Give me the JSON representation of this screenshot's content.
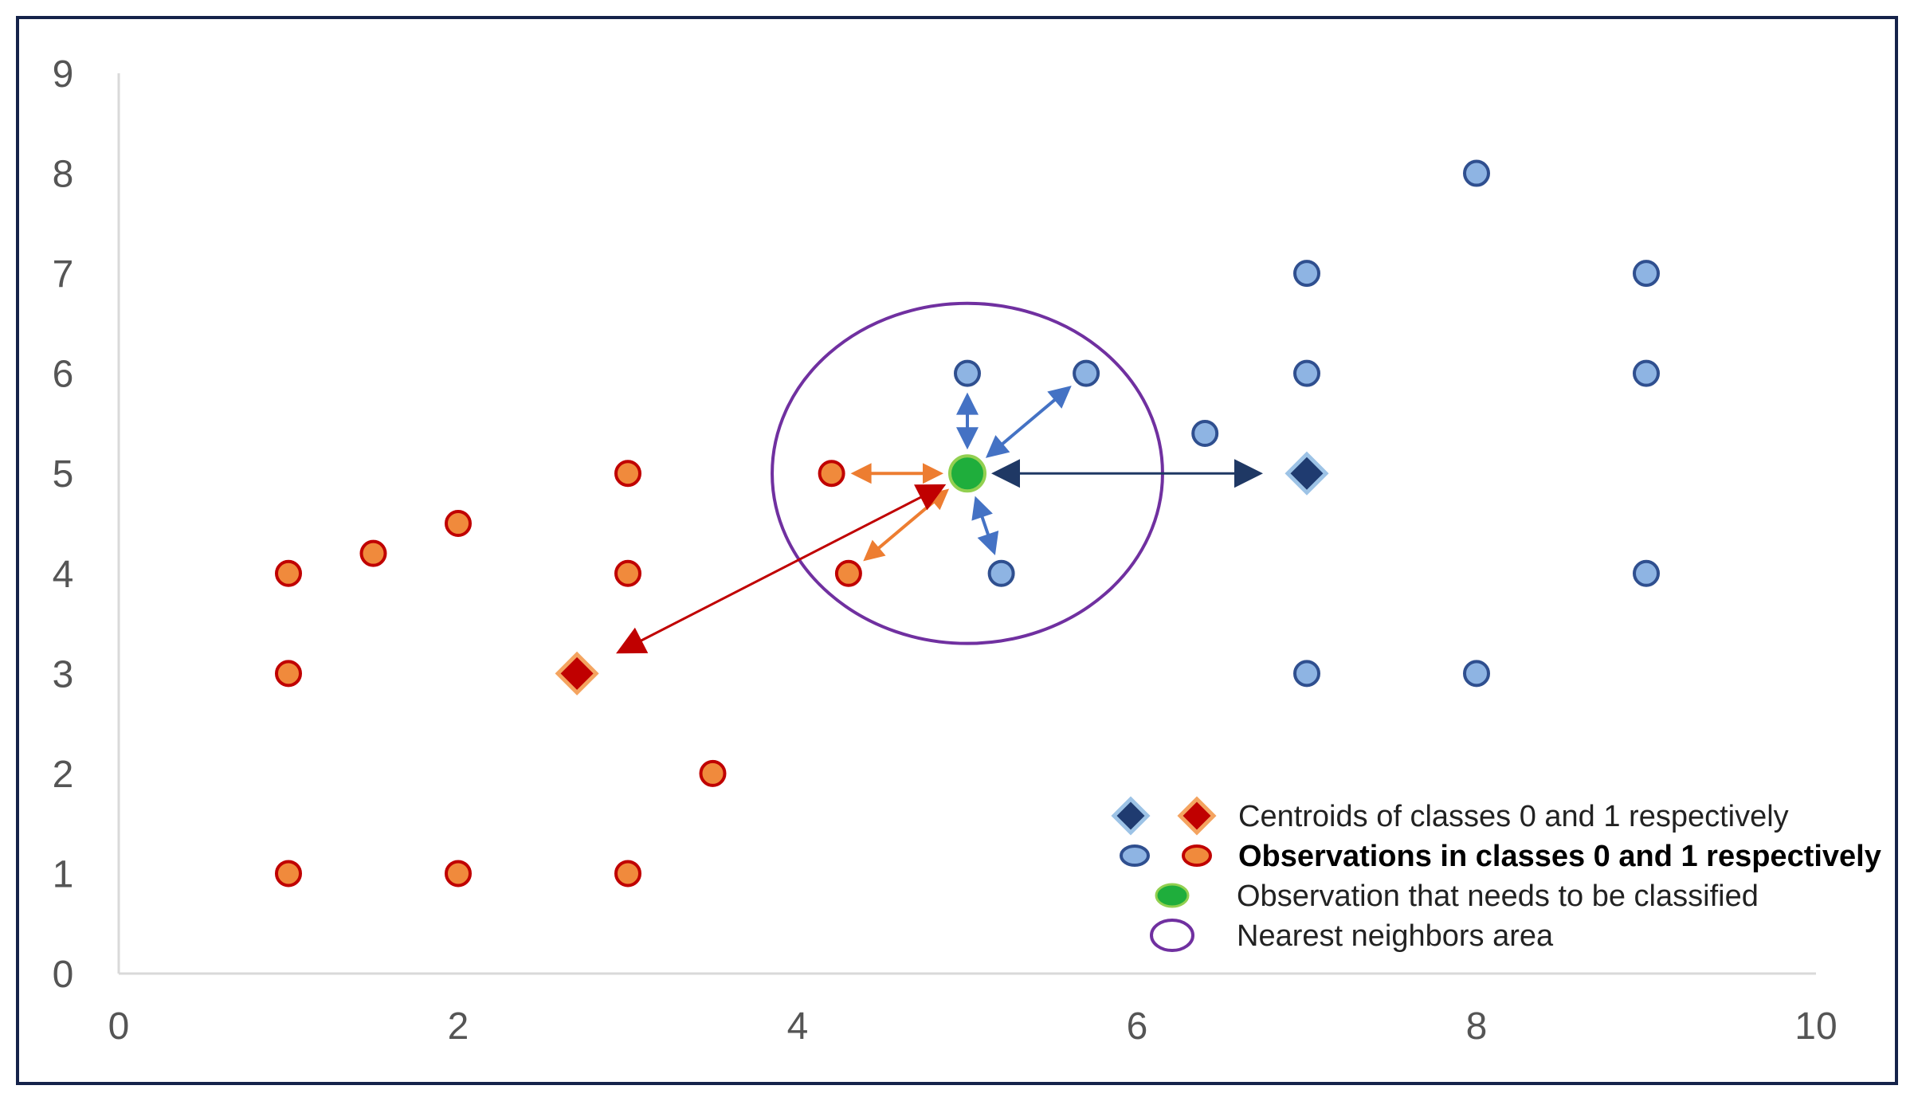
{
  "chart_data": {
    "type": "scatter",
    "title": "",
    "xlabel": "",
    "ylabel": "",
    "xlim": [
      0,
      10
    ],
    "ylim": [
      0,
      9
    ],
    "x_ticks": [
      0,
      2,
      4,
      6,
      8,
      10
    ],
    "y_ticks": [
      0,
      1,
      2,
      3,
      4,
      5,
      6,
      7,
      8,
      9
    ],
    "grid": false,
    "legend_position": "bottom-right",
    "series": [
      {
        "id": "class0",
        "points": [
          [
            5,
            6
          ],
          [
            5.7,
            6
          ],
          [
            6.4,
            5.4
          ],
          [
            5.2,
            4
          ],
          [
            7,
            7
          ],
          [
            7,
            6
          ],
          [
            7,
            3
          ],
          [
            8,
            8
          ],
          [
            8,
            3
          ],
          [
            9,
            7
          ],
          [
            9,
            6
          ],
          [
            9,
            4
          ]
        ]
      },
      {
        "id": "class1",
        "points": [
          [
            1,
            4
          ],
          [
            1,
            3
          ],
          [
            1,
            1
          ],
          [
            1.5,
            4.2
          ],
          [
            2,
            4.5
          ],
          [
            2,
            1
          ],
          [
            3,
            5
          ],
          [
            3,
            4
          ],
          [
            3,
            1
          ],
          [
            3.5,
            2
          ],
          [
            4.2,
            5
          ],
          [
            4.3,
            4
          ]
        ]
      }
    ],
    "centroids": [
      {
        "class": "0",
        "x": 7,
        "y": 5
      },
      {
        "class": "1",
        "x": 2.7,
        "y": 3
      }
    ],
    "query_point": {
      "x": 5,
      "y": 5
    },
    "neighbors_area": {
      "center_x": 5,
      "center_y": 5,
      "radius_x": 1.15,
      "radius_y": 1.7
    },
    "arrows": [
      {
        "type": "neighbor-class0",
        "from": [
          5,
          5
        ],
        "to": [
          5,
          6
        ]
      },
      {
        "type": "neighbor-class0",
        "from": [
          5,
          5
        ],
        "to": [
          5.7,
          6
        ]
      },
      {
        "type": "neighbor-class0",
        "from": [
          5,
          5
        ],
        "to": [
          5.2,
          4
        ]
      },
      {
        "type": "neighbor-class1",
        "from": [
          5,
          5
        ],
        "to": [
          4.2,
          5
        ]
      },
      {
        "type": "neighbor-class1",
        "from": [
          5,
          5
        ],
        "to": [
          4.3,
          4
        ]
      },
      {
        "type": "centroid-class0",
        "from": [
          5,
          5
        ],
        "to": [
          7,
          5
        ]
      },
      {
        "type": "centroid-class1",
        "from": [
          5,
          5
        ],
        "to": [
          2.7,
          3
        ]
      }
    ],
    "legend": [
      {
        "key": "centroids",
        "label": "Centroids of classes 0 and 1 respectively",
        "bold": false
      },
      {
        "key": "observations",
        "label": "Observations in classes 0 and 1 respectively",
        "bold": true
      },
      {
        "key": "query",
        "label": "Observation that needs to be classified",
        "bold": false
      },
      {
        "key": "area",
        "label": "Nearest neighbors area",
        "bold": false
      }
    ]
  },
  "colors": {
    "class0_fill": "#8eb4e3",
    "class0_stroke": "#2f4f8f",
    "class1_fill": "#f08a3c",
    "class1_stroke": "#c00000",
    "centroid0_fill": "#1f3b70",
    "centroid0_stroke": "#9dc3e6",
    "centroid1_fill": "#c00000",
    "centroid1_stroke": "#f4a460",
    "query_fill": "#1fae3c",
    "query_stroke": "#92d050",
    "ellipse": "#7030a0",
    "arrow_class0": "#4472c4",
    "arrow_class1": "#ed7d31",
    "arrow_centroid0": "#1f3864",
    "arrow_centroid1": "#c00000",
    "axis": "#d9d9d9",
    "frame": "#15234a"
  }
}
